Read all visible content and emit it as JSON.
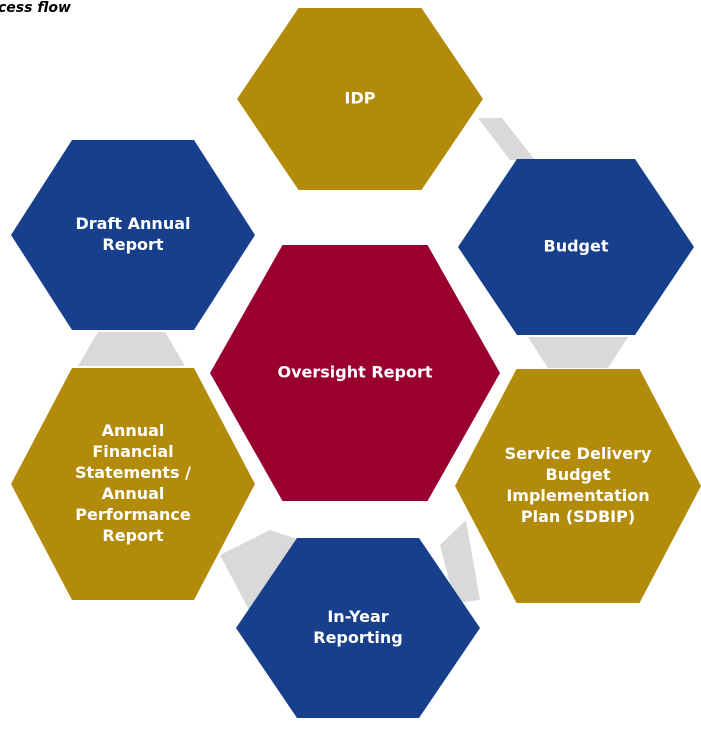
{
  "title": "cess flow",
  "nodes": [
    {
      "lines": [
        "IDP"
      ]
    },
    {
      "lines": [
        "Budget"
      ]
    },
    {
      "lines": [
        "Service Delivery",
        "Budget",
        "Implementation",
        "Plan (SDBIP)"
      ]
    },
    {
      "lines": [
        "In-Year",
        "Reporting"
      ]
    },
    {
      "lines": [
        "Annual",
        "Financial",
        "Statements /",
        "Annual",
        "Performance",
        "Report"
      ]
    },
    {
      "lines": [
        "Draft Annual",
        "Report"
      ]
    },
    {
      "lines": [
        "Oversight Report"
      ]
    }
  ]
}
